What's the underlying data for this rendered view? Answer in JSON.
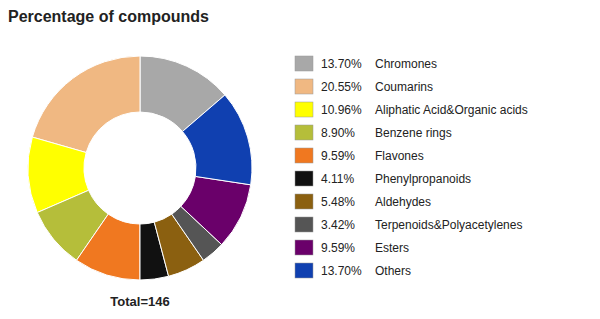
{
  "chart_data": {
    "type": "pie",
    "title": "Percentage of compounds",
    "categories": [
      "Chromones",
      "Coumarins",
      "Aliphatic Acid&Organic acids",
      "Benzene rings",
      "Flavones",
      "Phenylpropanoids",
      "Aldehydes",
      "Terpenoids&Polyacetylenes",
      "Esters",
      "Others"
    ],
    "values": [
      13.7,
      20.55,
      10.96,
      8.9,
      9.59,
      4.11,
      5.48,
      3.42,
      9.59,
      13.7
    ],
    "value_labels": [
      "13.70%",
      "20.55%",
      "10.96%",
      "8.90%",
      "9.59%",
      "4.11%",
      "5.48%",
      "3.42%",
      "9.59%",
      "13.70%"
    ],
    "colors": [
      "#a8a8a8",
      "#f0b882",
      "#ffff00",
      "#b5be3a",
      "#f07820",
      "#111111",
      "#8b6010",
      "#555555",
      "#6a006a",
      "#1040b0"
    ],
    "annotations": [
      "Total=146"
    ],
    "legend": "right"
  }
}
